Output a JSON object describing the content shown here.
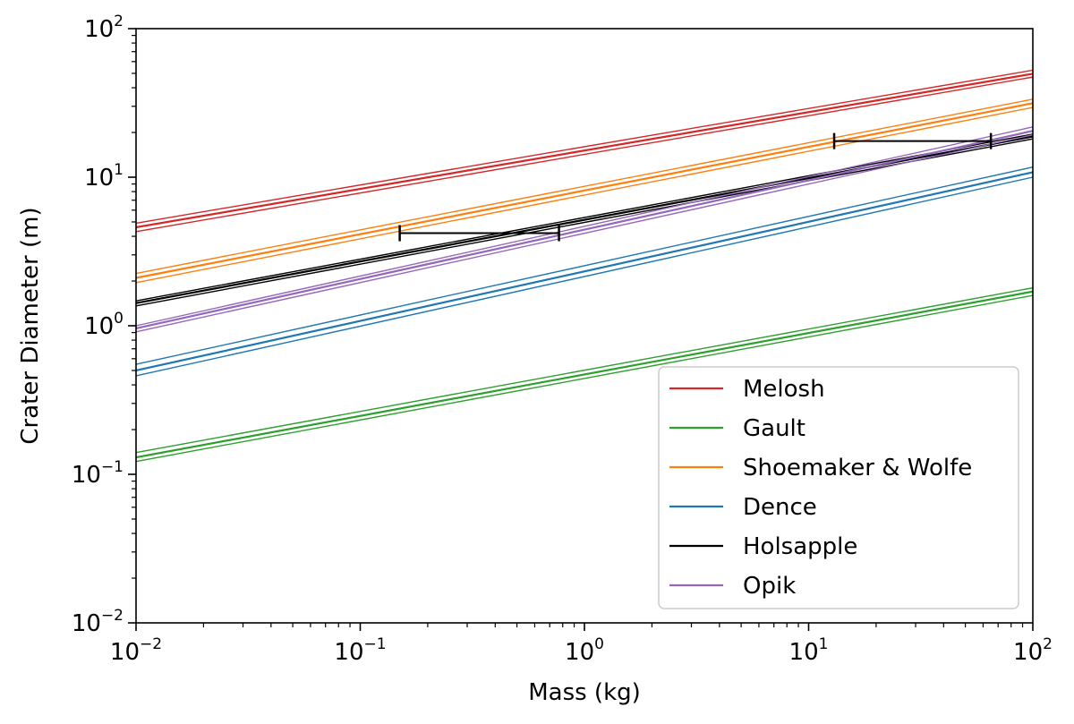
{
  "chart_data": {
    "type": "line",
    "xscale": "log",
    "yscale": "log",
    "xlabel": "Mass (kg)",
    "ylabel": "Crater Diameter (m)",
    "xlim": [
      0.01,
      100
    ],
    "ylim": [
      0.01,
      100
    ],
    "x_ticks": [
      {
        "value": 0.01,
        "base": "10",
        "exp": "−2"
      },
      {
        "value": 0.1,
        "base": "10",
        "exp": "−1"
      },
      {
        "value": 1,
        "base": "10",
        "exp": "0"
      },
      {
        "value": 10,
        "base": "10",
        "exp": "1"
      },
      {
        "value": 100,
        "base": "10",
        "exp": "2"
      }
    ],
    "y_ticks": [
      {
        "value": 0.01,
        "base": "10",
        "exp": "−2"
      },
      {
        "value": 0.1,
        "base": "10",
        "exp": "−1"
      },
      {
        "value": 1,
        "base": "10",
        "exp": "0"
      },
      {
        "value": 10,
        "base": "10",
        "exp": "1"
      },
      {
        "value": 100,
        "base": "10",
        "exp": "2"
      }
    ],
    "legend_position": "lower-right",
    "series": [
      {
        "name": "Melosh",
        "color": "#d62728",
        "x": [
          0.01,
          100
        ],
        "lines": [
          [
            4.9,
            52.5
          ],
          [
            4.6,
            49.7
          ],
          [
            4.3,
            47.2
          ]
        ]
      },
      {
        "name": "Gault",
        "color": "#2ca02c",
        "x": [
          0.01,
          100
        ],
        "lines": [
          [
            0.14,
            1.8
          ],
          [
            0.13,
            1.7
          ],
          [
            0.122,
            1.6
          ]
        ]
      },
      {
        "name": "Shoemaker & Wolfe",
        "color": "#ff7f0e",
        "x": [
          0.01,
          100
        ],
        "lines": [
          [
            2.25,
            33.5
          ],
          [
            2.1,
            31.5
          ],
          [
            1.95,
            29.5
          ]
        ]
      },
      {
        "name": "Dence",
        "color": "#1f77b4",
        "x": [
          0.01,
          100
        ],
        "lines": [
          [
            0.55,
            11.7
          ],
          [
            0.5,
            10.8
          ],
          [
            0.46,
            10.0
          ]
        ]
      },
      {
        "name": "Holsapple",
        "color": "#000000",
        "x": [
          0.01,
          100
        ],
        "lines": [
          [
            1.47,
            19.5
          ],
          [
            1.42,
            18.8
          ],
          [
            1.36,
            18.1
          ]
        ]
      },
      {
        "name": "Opik",
        "color": "#9467bd",
        "x": [
          0.01,
          100
        ],
        "lines": [
          [
            1.0,
            21.8
          ],
          [
            0.96,
            20.5
          ],
          [
            0.91,
            19.3
          ]
        ]
      }
    ],
    "error_bars": [
      {
        "y": 4.2,
        "x_low": 0.15,
        "x_high": 0.77,
        "color": "#000000"
      },
      {
        "y": 17.5,
        "x_low": 13,
        "x_high": 65,
        "color": "#000000"
      }
    ]
  }
}
